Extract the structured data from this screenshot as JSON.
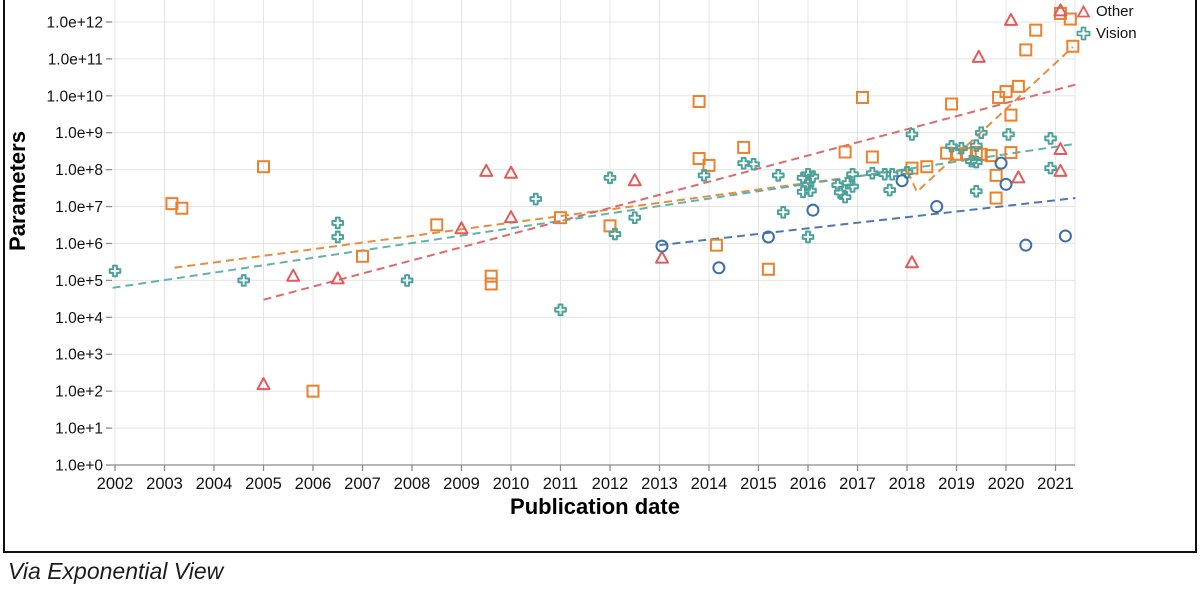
{
  "figure": {
    "caption": "Via Exponential View"
  },
  "legend": {
    "items": [
      {
        "label": "Other",
        "marker": "triangle",
        "color": "#E05C5C"
      },
      {
        "label": "Vision",
        "marker": "plus",
        "color": "#4BA29A"
      }
    ],
    "note": "additional legend entries cut off at top of screenshot"
  },
  "chart_data": {
    "type": "scatter",
    "title": "",
    "xlabel": "Publication date",
    "ylabel": "Parameters",
    "x_ticks": [
      2002,
      2003,
      2004,
      2005,
      2006,
      2007,
      2008,
      2009,
      2010,
      2011,
      2012,
      2013,
      2014,
      2015,
      2016,
      2017,
      2018,
      2019,
      2020,
      2021
    ],
    "y_tick_labels": [
      "1.0e+0",
      "1.0e+1",
      "1.0e+2",
      "1.0e+3",
      "1.0e+4",
      "1.0e+5",
      "1.0e+6",
      "1.0e+7",
      "1.0e+8",
      "1.0e+9",
      "1.0e+10",
      "1.0e+11",
      "1.0e+12"
    ],
    "y_scale": "log10",
    "ylim": [
      1,
      1000000000000.0
    ],
    "xlim": [
      2001.9,
      2021.4
    ],
    "grid": true,
    "legend_position": "top-right",
    "series": [
      {
        "id": "orange_squares",
        "label": null,
        "marker": "square",
        "color": "#E8822E",
        "points": [
          [
            2003.15,
            12000000.0
          ],
          [
            2003.35,
            9000000.0
          ],
          [
            2005.0,
            120000000.0
          ],
          [
            2006.0,
            100.0
          ],
          [
            2007.0,
            450000.0
          ],
          [
            2008.5,
            3200000.0
          ],
          [
            2009.6,
            130000.0
          ],
          [
            2009.6,
            80000.0
          ],
          [
            2011.0,
            5000000.0
          ],
          [
            2012.0,
            3000000.0
          ],
          [
            2013.8,
            7000000000.0
          ],
          [
            2013.8,
            200000000.0
          ],
          [
            2014.0,
            130000000.0
          ],
          [
            2014.15,
            900000.0
          ],
          [
            2014.7,
            400000000.0
          ],
          [
            2015.2,
            200000.0
          ],
          [
            2016.75,
            300000000.0
          ],
          [
            2017.1,
            9000000000.0
          ],
          [
            2017.3,
            220000000.0
          ],
          [
            2018.1,
            110000000.0
          ],
          [
            2018.4,
            120000000.0
          ],
          [
            2018.8,
            280000000.0
          ],
          [
            2018.9,
            6000000000.0
          ],
          [
            2019.0,
            260000000.0
          ],
          [
            2019.2,
            270000000.0
          ],
          [
            2019.4,
            290000000.0
          ],
          [
            2019.5,
            260000000.0
          ],
          [
            2019.7,
            240000000.0
          ],
          [
            2019.8,
            70000000.0
          ],
          [
            2019.8,
            17000000.0
          ],
          [
            2019.85,
            9000000000.0
          ],
          [
            2020.0,
            13000000000.0
          ],
          [
            2020.1,
            3000000000.0
          ],
          [
            2020.1,
            290000000.0
          ],
          [
            2020.25,
            18000000000.0
          ],
          [
            2020.4,
            175000000000.0
          ],
          [
            2020.6,
            600000000000.0
          ],
          [
            2021.1,
            1700000000000.0
          ],
          [
            2021.3,
            1200000000000.0
          ],
          [
            2021.35,
            220000000000.0
          ]
        ]
      },
      {
        "id": "vision",
        "label": "Vision",
        "marker": "plus",
        "color": "#4BA29A",
        "points": [
          [
            2002.0,
            180000.0
          ],
          [
            2004.6,
            100000.0
          ],
          [
            2006.5,
            3600000.0
          ],
          [
            2006.5,
            1500000.0
          ],
          [
            2007.9,
            100000.0
          ],
          [
            2010.5,
            16000000.0
          ],
          [
            2011.0,
            16000.0
          ],
          [
            2012.0,
            60000000.0
          ],
          [
            2012.1,
            1800000.0
          ],
          [
            2012.5,
            5000000.0
          ],
          [
            2013.9,
            70000000.0
          ],
          [
            2014.7,
            150000000.0
          ],
          [
            2014.9,
            140000000.0
          ],
          [
            2015.4,
            70000000.0
          ],
          [
            2015.5,
            7000000.0
          ],
          [
            2015.9,
            60000000.0
          ],
          [
            2015.9,
            25000000.0
          ],
          [
            2016.0,
            40000000.0
          ],
          [
            2016.0,
            1500000.0
          ],
          [
            2016.0,
            75000000.0
          ],
          [
            2016.05,
            27000000.0
          ],
          [
            2016.1,
            65000000.0
          ],
          [
            2016.6,
            38000000.0
          ],
          [
            2016.65,
            24000000.0
          ],
          [
            2016.75,
            18000000.0
          ],
          [
            2016.8,
            43000000.0
          ],
          [
            2016.9,
            75000000.0
          ],
          [
            2016.9,
            35000000.0
          ],
          [
            2017.3,
            80000000.0
          ],
          [
            2017.55,
            75000000.0
          ],
          [
            2017.65,
            28000000.0
          ],
          [
            2017.7,
            75000000.0
          ],
          [
            2018.0,
            85000000.0
          ],
          [
            2018.1,
            900000000.0
          ],
          [
            2018.9,
            430000000.0
          ],
          [
            2019.1,
            380000000.0
          ],
          [
            2019.3,
            170000000.0
          ],
          [
            2019.4,
            160000000.0
          ],
          [
            2019.4,
            450000000.0
          ],
          [
            2019.4,
            26000000.0
          ],
          [
            2019.5,
            1000000000.0
          ],
          [
            2020.05,
            900000000.0
          ],
          [
            2020.9,
            700000000.0
          ],
          [
            2020.9,
            110000000.0
          ]
        ]
      },
      {
        "id": "other",
        "label": "Other",
        "marker": "triangle",
        "color": "#E05C5C",
        "points": [
          [
            2005.0,
            150.0
          ],
          [
            2005.6,
            130000.0
          ],
          [
            2006.5,
            110000.0
          ],
          [
            2009.0,
            2500000.0
          ],
          [
            2009.5,
            90000000.0
          ],
          [
            2010.0,
            80000000.0
          ],
          [
            2010.0,
            5000000.0
          ],
          [
            2012.5,
            50000000.0
          ],
          [
            2013.05,
            400000.0
          ],
          [
            2018.1,
            300000.0
          ],
          [
            2019.45,
            110000000000.0
          ],
          [
            2020.1,
            1100000000000.0
          ],
          [
            2020.25,
            60000000.0
          ],
          [
            2021.1,
            2000000000000.0
          ],
          [
            2021.1,
            350000000.0
          ],
          [
            2021.1,
            90000000.0
          ]
        ]
      },
      {
        "id": "blue_circles",
        "label": null,
        "marker": "circle",
        "color": "#3D6FA8",
        "points": [
          [
            2013.05,
            850000.0
          ],
          [
            2014.2,
            220000.0
          ],
          [
            2015.2,
            1500000.0
          ],
          [
            2016.1,
            8000000.0
          ],
          [
            2017.9,
            50000000.0
          ],
          [
            2018.6,
            10000000.0
          ],
          [
            2019.9,
            150000000.0
          ],
          [
            2020.0,
            40000000.0
          ],
          [
            2020.4,
            900000.0
          ],
          [
            2021.2,
            1600000.0
          ]
        ]
      }
    ],
    "trend_lines": [
      {
        "series": "orange_squares",
        "color": "#E8822E",
        "style": "dashed",
        "points": [
          [
            2003.2,
            220000.0
          ],
          [
            2018.0,
            100000000.0
          ],
          [
            2018.2,
            25000000.0
          ],
          [
            2021.35,
            210000000000.0
          ]
        ]
      },
      {
        "series": "other",
        "color": "#E05C5C",
        "style": "dashed",
        "points": [
          [
            2005.0,
            30000.0
          ],
          [
            2021.4,
            20000000000.0
          ]
        ]
      },
      {
        "series": "vision",
        "color": "#55ADA4",
        "style": "dashed",
        "points": [
          [
            2001.95,
            63000.0
          ],
          [
            2021.4,
            500000000.0
          ]
        ]
      },
      {
        "series": "blue_circles",
        "color": "#3D6FA8",
        "style": "dashed",
        "points": [
          [
            2013.0,
            900000.0
          ],
          [
            2021.4,
            17000000.0
          ]
        ]
      }
    ]
  }
}
